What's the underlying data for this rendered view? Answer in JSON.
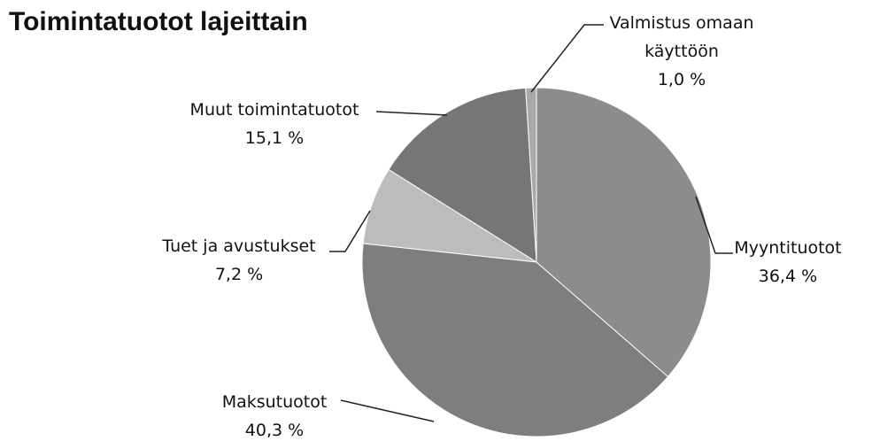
{
  "chart_data": {
    "type": "pie",
    "title": "Toimintatuotot lajeittain",
    "categories": [
      "Myyntituotot",
      "Maksutuotot",
      "Tuet ja avustukset",
      "Muut toimintatuotot",
      "Valmistus omaan käyttöön"
    ],
    "values": [
      36.4,
      40.3,
      7.2,
      15.1,
      1.0
    ],
    "value_labels": [
      "36,4 %",
      "40,3 %",
      "7,2 %",
      "15,1 %",
      "1,0 %"
    ],
    "colors": [
      "#8c8c8c",
      "#7e7e7e",
      "#bcbcbc",
      "#767676",
      "#a9a9a9"
    ]
  }
}
